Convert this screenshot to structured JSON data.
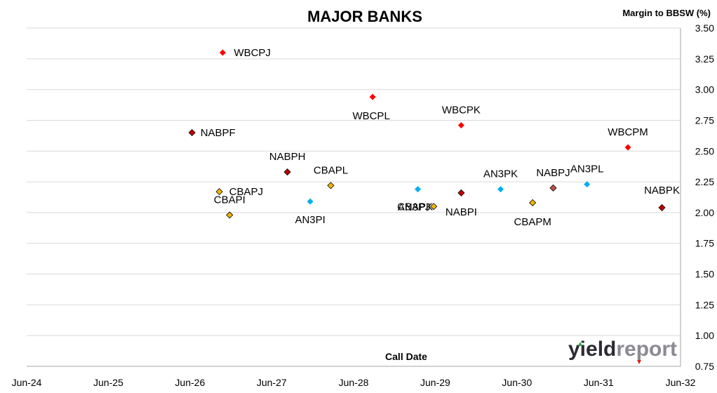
{
  "chart_data": {
    "type": "scatter",
    "title": "MAJOR BANKS",
    "xlabel": "Call Date",
    "ylabel": "Margin to BBSW (%)",
    "x_ticks": [
      "Jun-24",
      "Jun-25",
      "Jun-26",
      "Jun-27",
      "Jun-28",
      "Jun-29",
      "Jun-30",
      "Jun-31",
      "Jun-32"
    ],
    "y_ticks": [
      "0.75",
      "1.00",
      "1.25",
      "1.50",
      "1.75",
      "2.00",
      "2.25",
      "2.50",
      "2.75",
      "3.00",
      "3.25",
      "3.50"
    ],
    "ylim": [
      0.75,
      3.5
    ],
    "y_axis_side": "right",
    "grid": true,
    "points": [
      {
        "label": "NABPF",
        "x": "2026-06-10",
        "y": 2.65,
        "color": "#c00000"
      },
      {
        "label": "CBAPJ",
        "x": "2026-10-10",
        "y": 2.17,
        "color": "#f0b400"
      },
      {
        "label": "WBCPJ",
        "x": "2026-10-25",
        "y": 3.3,
        "color": "#ff0000"
      },
      {
        "label": "CBAPI",
        "x": "2026-11-25",
        "y": 1.98,
        "color": "#f0b400"
      },
      {
        "label": "NABPH",
        "x": "2027-08-10",
        "y": 2.33,
        "color": "#c00000"
      },
      {
        "label": "AN3PI",
        "x": "2027-11-20",
        "y": 2.09,
        "color": "#00b0f0"
      },
      {
        "label": "CBAPL",
        "x": "2028-02-20",
        "y": 2.22,
        "color": "#f0b400"
      },
      {
        "label": "WBCPL",
        "x": "2028-08-25",
        "y": 2.94,
        "color": "#ff0000"
      },
      {
        "label": "CBAPK",
        "x": "2029-03-15",
        "y": 2.19,
        "color": "#00b0f0"
      },
      {
        "label": "AN3PJ",
        "x": "2029-05-25",
        "y": 2.05,
        "color": "#f0b400"
      },
      {
        "label": "WBCPK",
        "x": "2029-09-25",
        "y": 2.71,
        "color": "#ff0000"
      },
      {
        "label": "NABPI",
        "x": "2029-09-25",
        "y": 2.16,
        "color": "#c00000"
      },
      {
        "label": "AN3PK",
        "x": "2030-03-20",
        "y": 2.19,
        "color": "#00b0f0"
      },
      {
        "label": "CBAPM",
        "x": "2030-08-10",
        "y": 2.08,
        "color": "#f0b400"
      },
      {
        "label": "NABPJ",
        "x": "2030-11-10",
        "y": 2.2,
        "color": "#c0504d"
      },
      {
        "label": "AN3PL",
        "x": "2031-04-10",
        "y": 2.23,
        "color": "#00b0f0"
      },
      {
        "label": "WBCPM",
        "x": "2031-10-10",
        "y": 2.53,
        "color": "#ff0000"
      },
      {
        "label": "NABPK",
        "x": "2032-03-10",
        "y": 2.04,
        "color": "#c00000"
      }
    ]
  },
  "logo": {
    "part1": "yield",
    "part2": "report"
  }
}
